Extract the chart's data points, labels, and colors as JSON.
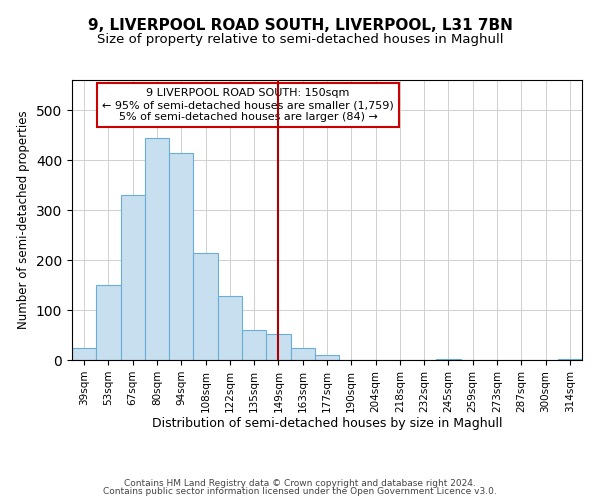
{
  "title": "9, LIVERPOOL ROAD SOUTH, LIVERPOOL, L31 7BN",
  "subtitle": "Size of property relative to semi-detached houses in Maghull",
  "xlabel": "Distribution of semi-detached houses by size in Maghull",
  "ylabel": "Number of semi-detached properties",
  "bin_labels": [
    "39sqm",
    "53sqm",
    "67sqm",
    "80sqm",
    "94sqm",
    "108sqm",
    "122sqm",
    "135sqm",
    "149sqm",
    "163sqm",
    "177sqm",
    "190sqm",
    "204sqm",
    "218sqm",
    "232sqm",
    "245sqm",
    "259sqm",
    "273sqm",
    "287sqm",
    "300sqm",
    "314sqm"
  ],
  "bar_heights": [
    25,
    150,
    330,
    445,
    415,
    215,
    128,
    60,
    53,
    25,
    10,
    0,
    0,
    0,
    0,
    2,
    0,
    0,
    0,
    0,
    2
  ],
  "bar_color": "#c8dff0",
  "bar_edge_color": "#6aaed6",
  "vline_x_index": 8.0,
  "vline_color": "#aa0000",
  "annotation_title": "9 LIVERPOOL ROAD SOUTH: 150sqm",
  "annotation_line1": "← 95% of semi-detached houses are smaller (1,759)",
  "annotation_line2": "5% of semi-detached houses are larger (84) →",
  "annotation_box_color": "white",
  "annotation_box_edge": "#cc0000",
  "ylim": [
    0,
    560
  ],
  "footer1": "Contains HM Land Registry data © Crown copyright and database right 2024.",
  "footer2": "Contains public sector information licensed under the Open Government Licence v3.0.",
  "title_fontsize": 11,
  "subtitle_fontsize": 9.5,
  "figsize": [
    6.0,
    5.0
  ],
  "dpi": 100
}
